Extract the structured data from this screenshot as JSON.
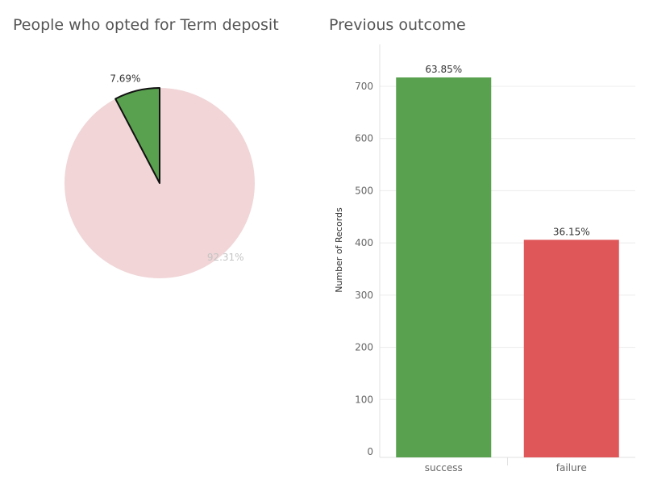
{
  "colors": {
    "success": "#59a14f",
    "failure": "#e05759",
    "no_deposit": "#f1d5d7",
    "grid": "#ececec"
  },
  "chart_data": [
    {
      "type": "pie",
      "title": "People who opted for Term deposit",
      "slices": [
        {
          "value": 7.69,
          "label": "7.69%",
          "color": "#59a14f",
          "highlighted": true
        },
        {
          "value": 92.31,
          "label": "92.31%",
          "color": "#f1d5d7",
          "highlighted": false
        }
      ]
    },
    {
      "type": "bar",
      "title": "Previous outcome",
      "categories": [
        "success",
        "failure"
      ],
      "values": [
        717,
        406
      ],
      "labels": [
        "63.85%",
        "36.15%"
      ],
      "colors": [
        "#59a14f",
        "#e05759"
      ],
      "xlabel": "",
      "ylabel": "Number of Records",
      "ylim": [
        0,
        730
      ],
      "yticks": [
        0,
        100,
        200,
        300,
        400,
        500,
        600,
        700
      ],
      "grid": true
    }
  ]
}
